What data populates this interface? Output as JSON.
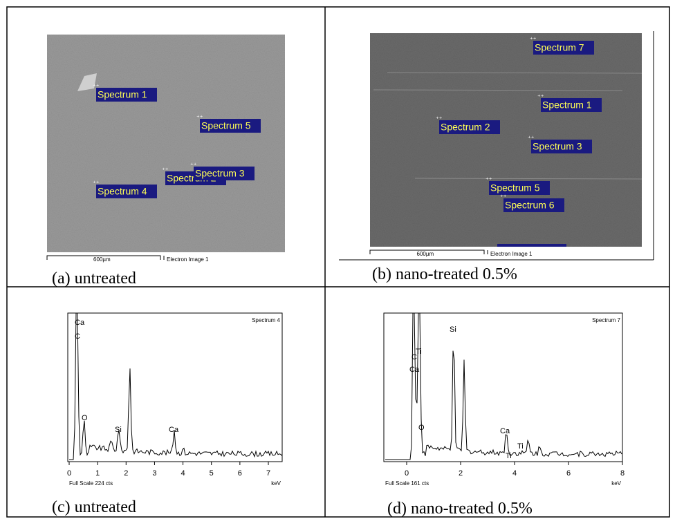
{
  "panels": [
    {
      "caption": "(a) untreated",
      "labels": [
        "Spectrum 1",
        "Spectrum 5",
        "Spectrum 2",
        "Spectrum 3",
        "Spectrum 4"
      ],
      "scale_bar": "600µm",
      "image_label": "Electron Image 1"
    },
    {
      "caption": "(b) nano-treated 0.5%",
      "labels": [
        "Spectrum 7",
        "Spectrum 1",
        "Spectrum 2",
        "Spectrum 3",
        "Spectrum 5",
        "Spectrum 6"
      ],
      "scale_bar": "600µm",
      "image_label": "Electron Image 1"
    },
    {
      "caption": "(c) untreated",
      "spectrum_title": "Spectrum 4",
      "full_scale": "Full Scale 224 cts",
      "x_unit": "keV",
      "xticks": [
        0,
        1,
        2,
        3,
        4,
        5,
        6,
        7
      ],
      "peaks": [
        "Ca",
        "C",
        "O",
        "Si",
        "Ca"
      ]
    },
    {
      "caption": "(d) nano-treated 0.5%",
      "spectrum_title": "Spectrum 7",
      "full_scale": "Full Scale 161 cts",
      "x_unit": "keV",
      "xticks": [
        0,
        2,
        4,
        6,
        8
      ],
      "peaks": [
        "C",
        "Ti",
        "Ca",
        "Si",
        "O",
        "Ca",
        "Ti",
        "Ti"
      ]
    }
  ]
}
